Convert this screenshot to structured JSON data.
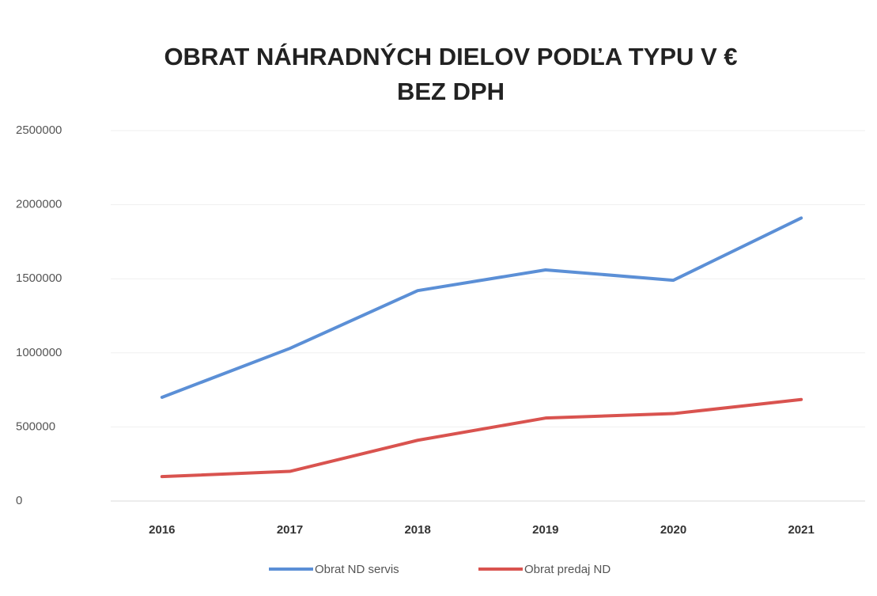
{
  "chart_data": {
    "type": "line",
    "title": [
      "OBRAT NÁHRADNÝCH DIELOV PODĽA TYPU V €",
      "BEZ DPH"
    ],
    "categories": [
      "2016",
      "2017",
      "2018",
      "2019",
      "2020",
      "2021"
    ],
    "series": [
      {
        "name": "Obrat ND servis",
        "color": "#5b8fd6",
        "values": [
          700000,
          1030000,
          1420000,
          1560000,
          1490000,
          1910000
        ]
      },
      {
        "name": "Obrat predaj ND",
        "color": "#d9534f",
        "values": [
          165000,
          200000,
          410000,
          560000,
          590000,
          685000
        ]
      }
    ],
    "ylim": [
      0,
      2500000
    ],
    "yticks": [
      0,
      500000,
      1000000,
      1500000,
      2000000,
      2500000
    ],
    "grid": true,
    "legend": "bottom"
  }
}
